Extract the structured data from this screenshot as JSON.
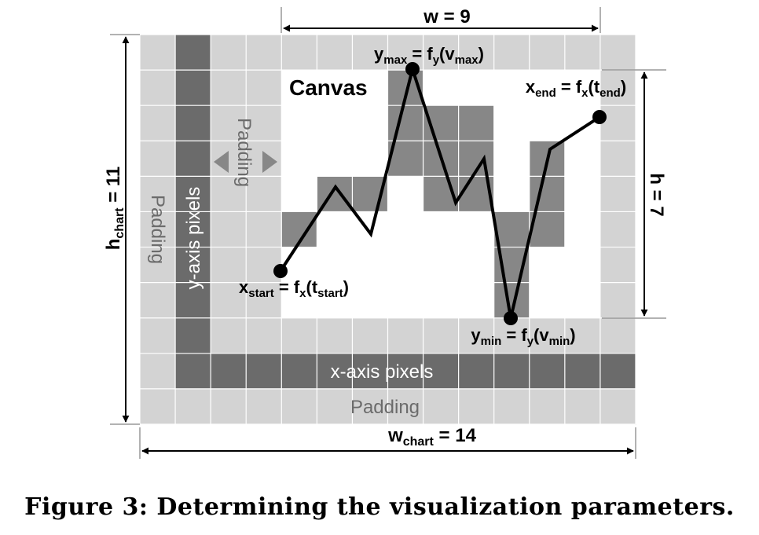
{
  "figure": {
    "caption": "Figure 3: Determining the visualization parameters.",
    "canvas_title": "Canvas",
    "padding_left_outer": "Padding",
    "padding_left_inner": "Padding",
    "padding_bottom": "Padding",
    "y_axis_label": "y-axis pixels",
    "x_axis_label": "x-axis pixels",
    "colors": {
      "padding": "#d3d3d3",
      "axis": "#6b6b6b",
      "canvas": "#ffffff",
      "highlight": "#878787",
      "grid_line": "#ffffff",
      "text": "#000000",
      "label_on_padding": "#6b6b6b",
      "label_on_axis": "#ffffff"
    }
  },
  "dimensions": {
    "w": {
      "name": "w",
      "value": "9"
    },
    "h": {
      "name": "h",
      "value": "7"
    },
    "w_chart": {
      "base": "w",
      "sub": "chart",
      "value": "14"
    },
    "h_chart": {
      "base": "h",
      "sub": "chart",
      "value": "11"
    }
  },
  "points": {
    "y_max": {
      "lhs_base": "y",
      "lhs_sub": "max",
      "fn_base": "f",
      "fn_sub": "y",
      "arg_base": "v",
      "arg_sub": "max"
    },
    "y_min": {
      "lhs_base": "y",
      "lhs_sub": "min",
      "fn_base": "f",
      "fn_sub": "y",
      "arg_base": "v",
      "arg_sub": "min"
    },
    "x_start": {
      "lhs_base": "x",
      "lhs_sub": "start",
      "fn_base": "f",
      "fn_sub": "x",
      "arg_base": "t",
      "arg_sub": "start"
    },
    "x_end": {
      "lhs_base": "x",
      "lhs_sub": "end",
      "fn_base": "f",
      "fn_sub": "x",
      "arg_base": "t",
      "arg_sub": "end"
    }
  }
}
